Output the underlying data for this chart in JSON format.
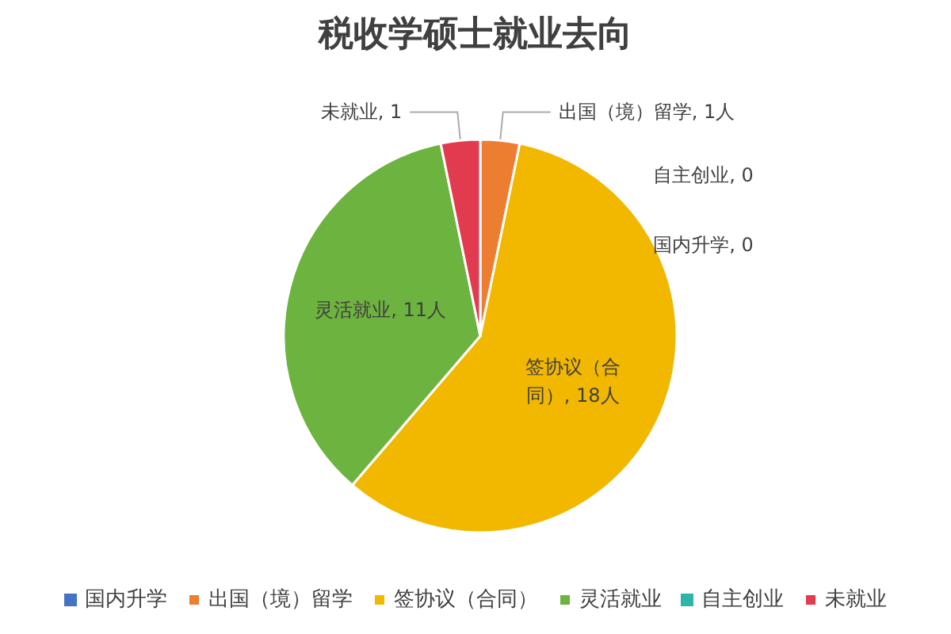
{
  "chart_data": {
    "type": "pie",
    "title": "税收学硕士就业去向",
    "categories": [
      "国内升学",
      "出国（境）留学",
      "签协议（合同）",
      "灵活就业",
      "自主创业",
      "未就业"
    ],
    "values": [
      0,
      1,
      18,
      11,
      0,
      1
    ],
    "colors": [
      "#4472c4",
      "#ed7d31",
      "#f2b800",
      "#6db33f",
      "#2fb5a8",
      "#e23b50"
    ],
    "value_labels": [
      "国内升学, 0",
      "出国（境）留学, 1人",
      "签协议（合同）, 18人",
      "灵活就业, 11人",
      "自主创业, 0",
      "未就业, 1"
    ],
    "legend": "bottom"
  }
}
